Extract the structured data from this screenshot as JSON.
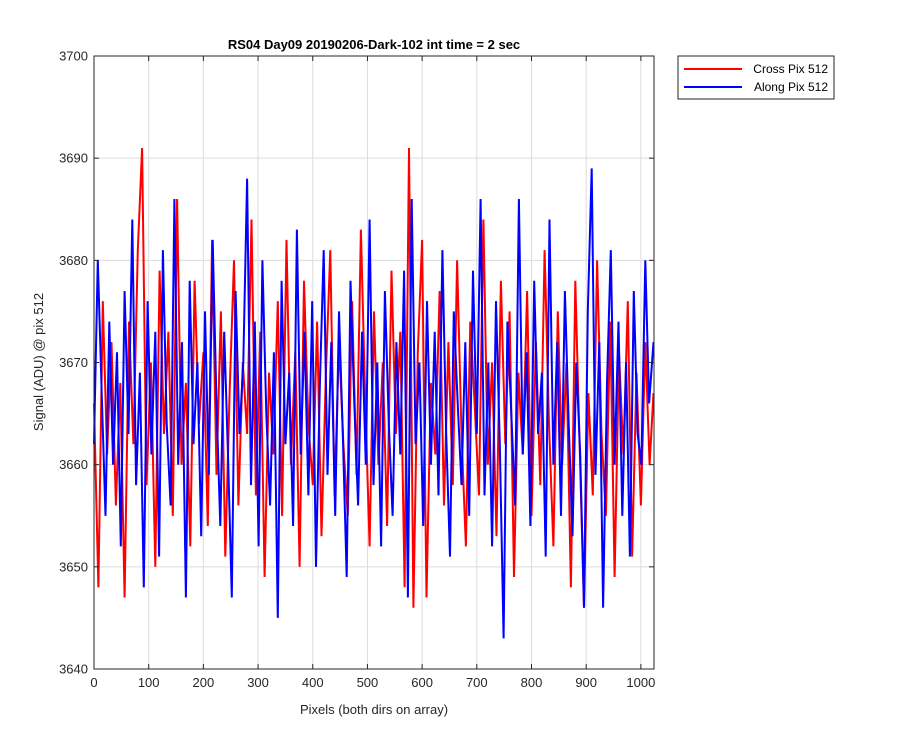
{
  "chart_data": {
    "type": "line",
    "title": "RS04 Day09 20190206-Dark-102 int time = 2 sec",
    "xlabel": "Pixels (both dirs on array)",
    "ylabel": "Signal (ADU) @ pix 512",
    "xlim": [
      0,
      1024
    ],
    "ylim": [
      3640,
      3700
    ],
    "xticks": [
      0,
      100,
      200,
      300,
      400,
      500,
      600,
      700,
      800,
      900,
      1000
    ],
    "yticks": [
      3640,
      3650,
      3660,
      3670,
      3680,
      3690,
      3700
    ],
    "xtick_labels": [
      "0",
      "100",
      "200",
      "300",
      "400",
      "500",
      "600",
      "700",
      "800",
      "900",
      "1000"
    ],
    "ytick_labels": [
      "3640",
      "3650",
      "3660",
      "3670",
      "3680",
      "3690",
      "3700"
    ],
    "grid": true,
    "legend_position": "outside-top-right",
    "series": [
      {
        "name": "Cross Pix 512",
        "color": "#ff0000",
        "x": [
          0,
          8,
          16,
          24,
          32,
          40,
          48,
          56,
          64,
          72,
          80,
          88,
          96,
          104,
          112,
          120,
          128,
          136,
          144,
          152,
          160,
          168,
          176,
          184,
          192,
          200,
          208,
          216,
          224,
          232,
          240,
          248,
          256,
          264,
          272,
          280,
          288,
          296,
          304,
          312,
          320,
          328,
          336,
          344,
          352,
          360,
          368,
          376,
          384,
          392,
          400,
          408,
          416,
          424,
          432,
          440,
          448,
          456,
          464,
          472,
          480,
          488,
          496,
          504,
          512,
          520,
          528,
          536,
          544,
          552,
          560,
          568,
          576,
          584,
          592,
          600,
          608,
          616,
          624,
          632,
          640,
          648,
          656,
          664,
          672,
          680,
          688,
          696,
          704,
          712,
          720,
          728,
          736,
          744,
          752,
          760,
          768,
          776,
          784,
          792,
          800,
          808,
          816,
          824,
          832,
          840,
          848,
          856,
          864,
          872,
          880,
          888,
          896,
          904,
          912,
          920,
          928,
          936,
          944,
          952,
          960,
          968,
          976,
          984,
          992,
          1000,
          1008,
          1016,
          1023
        ],
        "y": [
          3666,
          3648,
          3676,
          3661,
          3672,
          3656,
          3668,
          3647,
          3674,
          3662,
          3681,
          3691,
          3658,
          3670,
          3650,
          3679,
          3663,
          3673,
          3655,
          3686,
          3660,
          3668,
          3652,
          3678,
          3664,
          3671,
          3654,
          3682,
          3659,
          3675,
          3651,
          3667,
          3680,
          3656,
          3670,
          3663,
          3684,
          3657,
          3673,
          3649,
          3669,
          3661,
          3676,
          3655,
          3682,
          3660,
          3671,
          3650,
          3678,
          3664,
          3658,
          3674,
          3653,
          3669,
          3681,
          3657,
          3672,
          3662,
          3655,
          3676,
          3659,
          3683,
          3666,
          3652,
          3675,
          3660,
          3670,
          3654,
          3679,
          3663,
          3673,
          3648,
          3691,
          3646,
          3671,
          3682,
          3647,
          3668,
          3661,
          3677,
          3656,
          3672,
          3658,
          3680,
          3663,
          3652,
          3674,
          3666,
          3657,
          3684,
          3660,
          3670,
          3653,
          3678,
          3662,
          3675,
          3649,
          3669,
          3661,
          3677,
          3655,
          3672,
          3658,
          3681,
          3664,
          3652,
          3675,
          3660,
          3670,
          3648,
          3678,
          3662,
          3646,
          3667,
          3657,
          3680,
          3663,
          3655,
          3674,
          3649,
          3671,
          3661,
          3676,
          3651,
          3669,
          3656,
          3672,
          3660,
          3667
        ]
      },
      {
        "name": "Along Pix 512",
        "color": "#0000ff",
        "x": [
          0,
          7,
          14,
          21,
          28,
          35,
          42,
          49,
          56,
          63,
          70,
          77,
          84,
          91,
          98,
          105,
          112,
          119,
          126,
          133,
          140,
          147,
          154,
          161,
          168,
          175,
          182,
          189,
          196,
          203,
          210,
          217,
          224,
          231,
          238,
          245,
          252,
          259,
          266,
          273,
          280,
          287,
          294,
          301,
          308,
          315,
          322,
          329,
          336,
          343,
          350,
          357,
          364,
          371,
          378,
          385,
          392,
          399,
          406,
          413,
          420,
          427,
          434,
          441,
          448,
          455,
          462,
          469,
          476,
          483,
          490,
          497,
          504,
          511,
          518,
          525,
          532,
          539,
          546,
          553,
          560,
          567,
          574,
          581,
          588,
          595,
          602,
          609,
          616,
          623,
          630,
          637,
          644,
          651,
          658,
          665,
          672,
          679,
          686,
          693,
          700,
          707,
          714,
          721,
          728,
          735,
          742,
          749,
          756,
          763,
          770,
          777,
          784,
          791,
          798,
          805,
          812,
          819,
          826,
          833,
          840,
          847,
          854,
          861,
          868,
          875,
          882,
          889,
          896,
          903,
          910,
          917,
          924,
          931,
          938,
          945,
          952,
          959,
          966,
          973,
          980,
          987,
          994,
          1001,
          1008,
          1015,
          1023
        ],
        "y": [
          3662,
          3680,
          3667,
          3655,
          3674,
          3660,
          3671,
          3652,
          3677,
          3663,
          3684,
          3658,
          3669,
          3648,
          3676,
          3661,
          3673,
          3651,
          3681,
          3664,
          3656,
          3686,
          3660,
          3672,
          3647,
          3678,
          3662,
          3670,
          3653,
          3675,
          3659,
          3682,
          3666,
          3654,
          3673,
          3661,
          3647,
          3677,
          3663,
          3670,
          3688,
          3658,
          3674,
          3652,
          3680,
          3665,
          3656,
          3671,
          3645,
          3678,
          3662,
          3669,
          3654,
          3683,
          3661,
          3673,
          3657,
          3676,
          3650,
          3668,
          3681,
          3659,
          3672,
          3655,
          3675,
          3663,
          3649,
          3678,
          3666,
          3656,
          3673,
          3660,
          3684,
          3658,
          3670,
          3652,
          3677,
          3664,
          3655,
          3672,
          3661,
          3679,
          3647,
          3686,
          3662,
          3670,
          3654,
          3676,
          3660,
          3673,
          3657,
          3681,
          3663,
          3651,
          3675,
          3666,
          3658,
          3672,
          3655,
          3679,
          3663,
          3686,
          3657,
          3670,
          3652,
          3676,
          3662,
          3643,
          3674,
          3665,
          3656,
          3686,
          3661,
          3671,
          3654,
          3678,
          3663,
          3669,
          3651,
          3684,
          3660,
          3672,
          3655,
          3677,
          3664,
          3653,
          3670,
          3661,
          3646,
          3675,
          3689,
          3659,
          3672,
          3646,
          3668,
          3681,
          3660,
          3674,
          3655,
          3670,
          3651,
          3677,
          3663,
          3660,
          3680,
          3666,
          3672
        ]
      }
    ]
  }
}
